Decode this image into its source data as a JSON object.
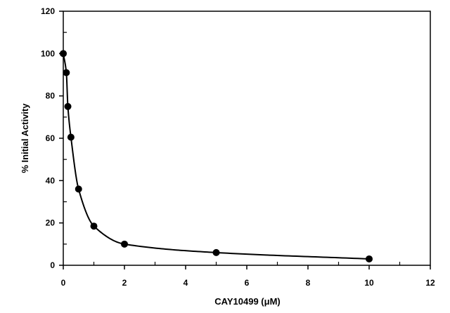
{
  "chart_data": {
    "type": "scatter",
    "title": "",
    "xlabel": "CAY10499 (μM)",
    "ylabel": "% Initial Activity",
    "xlim": [
      0,
      12
    ],
    "ylim": [
      0,
      120
    ],
    "x_ticks": [
      0,
      2,
      4,
      6,
      8,
      10,
      12
    ],
    "y_ticks": [
      0,
      20,
      40,
      60,
      80,
      100,
      120
    ],
    "grid": false,
    "legend": "none",
    "fit_curve": true,
    "series": [
      {
        "x": [
          0,
          0.1,
          0.15,
          0.25,
          0.5,
          1,
          2,
          5,
          10
        ],
        "y": [
          100,
          91,
          75,
          60.5,
          36,
          18.5,
          10,
          6,
          3
        ]
      }
    ],
    "colors": {
      "marker": "#000000",
      "line": "#000000",
      "axis": "#000000"
    }
  }
}
